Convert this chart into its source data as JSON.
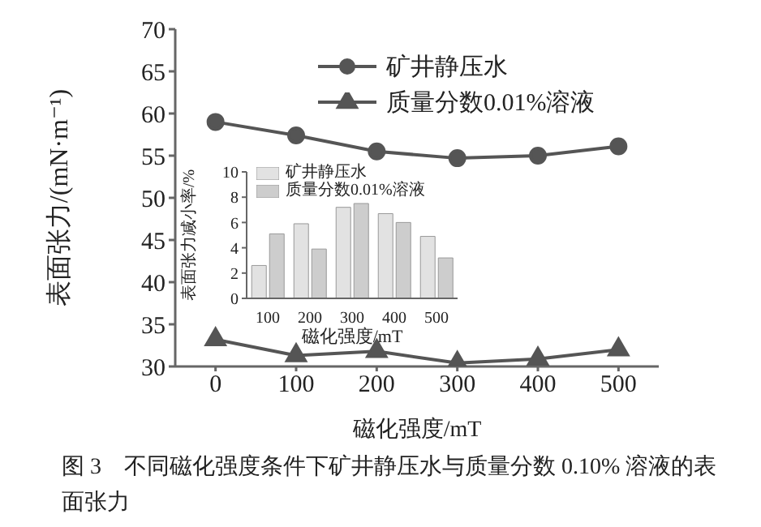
{
  "chart_data": [
    {
      "type": "line",
      "xlabel": "磁化强度/mT",
      "ylabel": "表面张力/(mN·m⁻¹)",
      "x": [
        0,
        100,
        200,
        300,
        400,
        500
      ],
      "xlim": [
        -50,
        550
      ],
      "xticks": [
        0,
        100,
        200,
        300,
        400,
        500
      ],
      "ylim": [
        30,
        70
      ],
      "yticks": [
        30,
        35,
        40,
        45,
        50,
        55,
        60,
        65,
        70
      ],
      "legend": "top right",
      "grid": false,
      "series": [
        {
          "name": "矿井静压水",
          "color": "#555555",
          "marker": "circle",
          "values": [
            59,
            57.4,
            55.5,
            54.7,
            55,
            56.1
          ]
        },
        {
          "name": "质量分数0.01%溶液",
          "color": "#555555",
          "marker": "triangle",
          "values": [
            33.2,
            31.3,
            31.8,
            30.4,
            30.9,
            32
          ]
        }
      ],
      "annotations": [
        "图 3　不同磁化强度条件下矿井静压水与质量分数 0.10% 溶液的表面张力"
      ]
    },
    {
      "type": "bar",
      "xlabel": "磁化强度/mT",
      "ylabel": "表面张力减小率/%",
      "categories": [
        "100",
        "200",
        "300",
        "400",
        "500"
      ],
      "ylim": [
        0,
        10
      ],
      "yticks": [
        0,
        2,
        4,
        6,
        8,
        10
      ],
      "legend": "top left",
      "grid": false,
      "series": [
        {
          "name": "矿井静压水",
          "color": "#e2e2e2",
          "values": [
            2.6,
            5.9,
            7.2,
            6.7,
            4.9
          ]
        },
        {
          "name": "质量分数0.01%溶液",
          "color": "#cdcdcd",
          "values": [
            5.1,
            3.9,
            7.5,
            6.0,
            3.2
          ]
        }
      ]
    }
  ]
}
